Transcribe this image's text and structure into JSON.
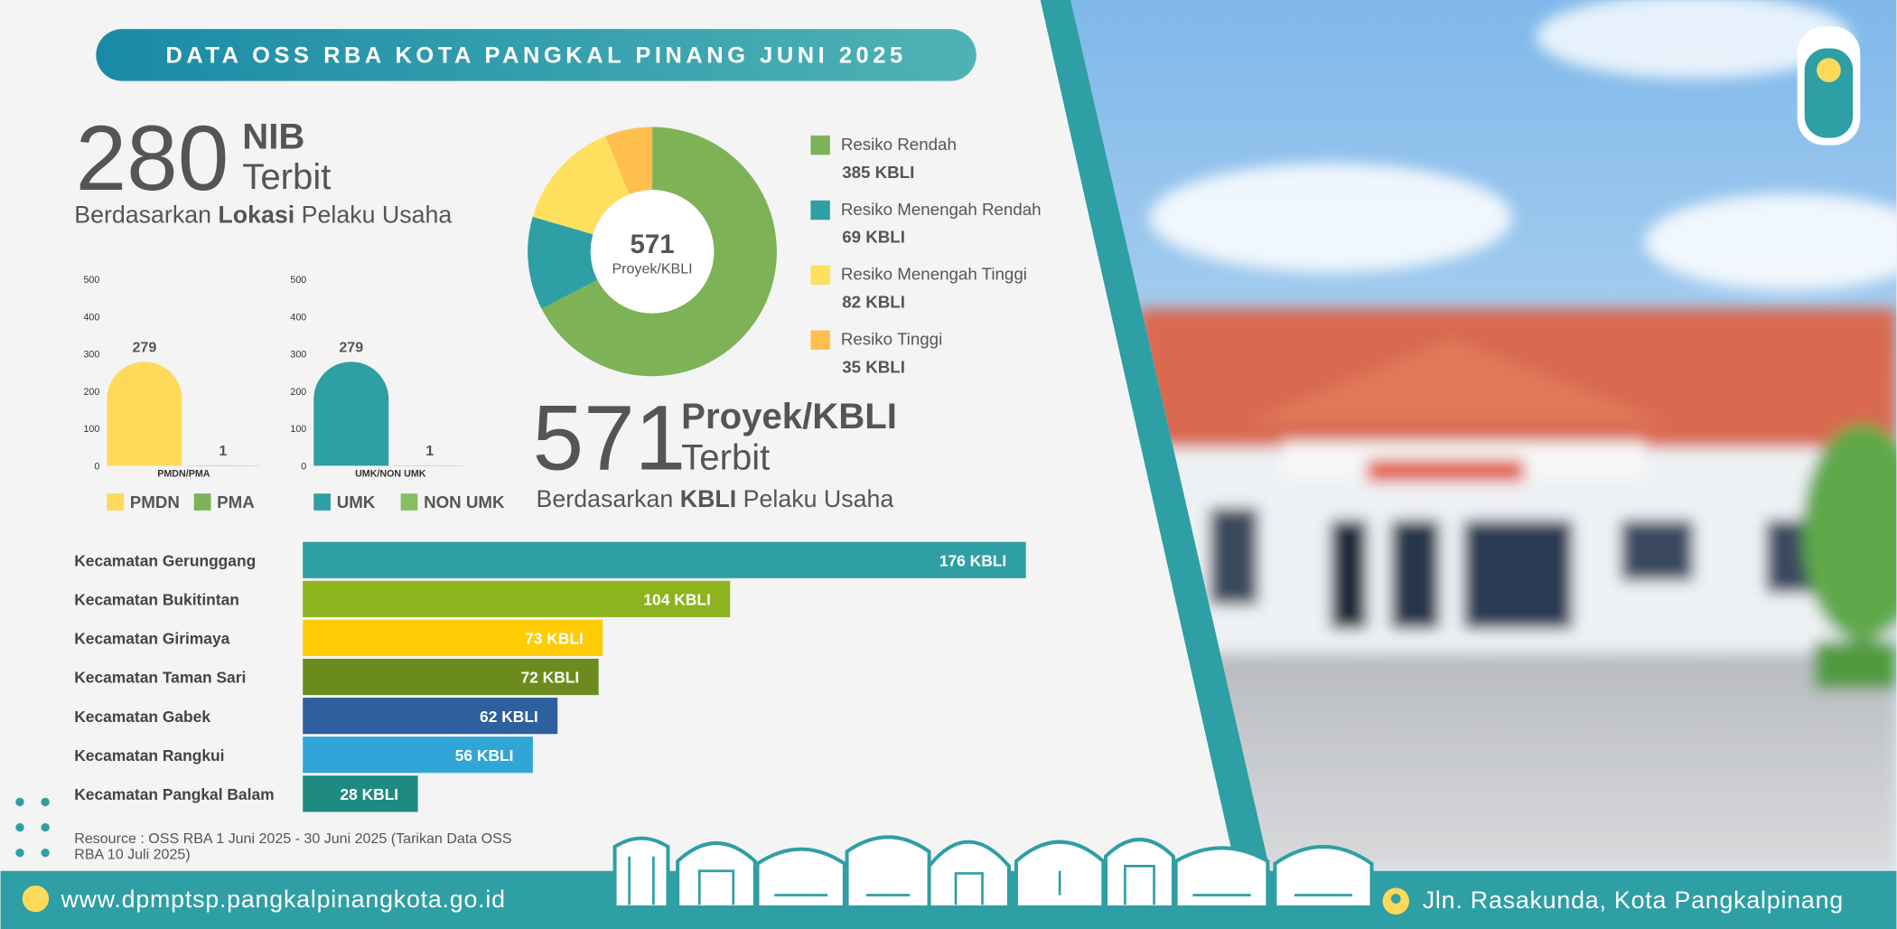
{
  "header": {
    "title": "DATA OSS RBA KOTA PANGKAL PINANG JUNI 2025"
  },
  "stats": [
    {
      "number": "280",
      "unit": "NIB",
      "status": "Terbit",
      "caption": [
        "Berdasarkan ",
        "Lokasi",
        " Pelaku Usaha"
      ]
    },
    {
      "number": "571",
      "unit": "Proyek/KBLI",
      "status": "Terbit",
      "caption": [
        "Berdasarkan ",
        "KBLI",
        " Pelaku Usaha"
      ]
    }
  ],
  "chart_data": [
    {
      "type": "bar",
      "xlabel": "PMDN/PMA",
      "categories": [
        "PMDN",
        "PMA"
      ],
      "values": [
        279,
        1
      ],
      "colors": [
        "#ffd95a",
        "#7db356"
      ],
      "ylim": [
        0,
        500
      ],
      "yticks": [
        0,
        100,
        200,
        300,
        400,
        500
      ],
      "legend": "bottom"
    },
    {
      "type": "bar",
      "xlabel": "UMK/NON UMK",
      "categories": [
        "UMK",
        "NON UMK"
      ],
      "values": [
        279,
        1
      ],
      "colors": [
        "#2e9fa4",
        "#86bf62"
      ],
      "ylim": [
        0,
        500
      ],
      "yticks": [
        0,
        100,
        200,
        300,
        400,
        500
      ],
      "legend": "bottom"
    },
    {
      "type": "pie",
      "center": [
        "571",
        "Proyek/KBLI"
      ],
      "categories": [
        "Resiko Rendah",
        "Resiko Menengah Rendah",
        "Resiko Menengah Tinggi",
        "Resiko Tinggi"
      ],
      "values": [
        385,
        69,
        82,
        35
      ],
      "value_labels": [
        "385 KBLI",
        "69 KBLI",
        "82 KBLI",
        "35 KBLI"
      ],
      "colors": [
        "#7db356",
        "#2e9fa4",
        "#ffdf5e",
        "#ffbf4f"
      ],
      "legend": "right"
    },
    {
      "type": "hbar",
      "categories": [
        "Kecamatan Gerunggang",
        "Kecamatan Bukitintan",
        "Kecamatan Girimaya",
        "Kecamatan Taman Sari",
        "Kecamatan Gabek",
        "Kecamatan Rangkui",
        "Kecamatan Pangkal Balam"
      ],
      "values": [
        176,
        104,
        73,
        72,
        62,
        56,
        28
      ],
      "value_labels": [
        "176 KBLI",
        "104 KBLI",
        "73 KBLI",
        "72 KBLI",
        "62 KBLI",
        "56 KBLI",
        "28 KBLI"
      ],
      "colors": [
        "#2e9fa4",
        "#8db31e",
        "#ffcb05",
        "#6b8b1e",
        "#2e5f9e",
        "#2fa6d6",
        "#1e8a82"
      ]
    }
  ],
  "footer": {
    "resource": [
      "Resource : OSS RBA 1 Juni  2025 - 30 Juni 2025  (Tarikan Data OSS",
      "RBA 10 Juli 2025)"
    ],
    "website": "www.dpmptsp.pangkalpinangkota.go.id",
    "address": "Jln. Rasakunda, Kota Pangkalpinang"
  }
}
